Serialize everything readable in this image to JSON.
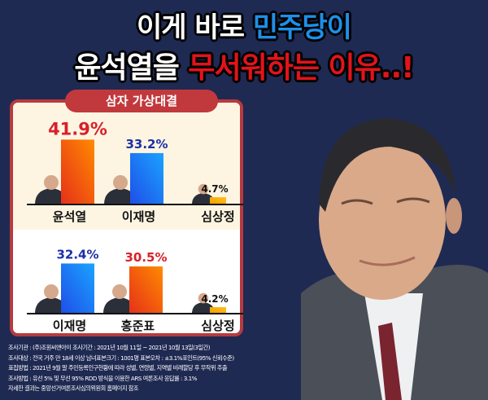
{
  "title": {
    "line1_a": "이게 바로 ",
    "line1_b": "민주당이",
    "line2_a": "윤석열을 ",
    "line2_b": "무서워하는 이유..!"
  },
  "badge": "삼자 가상대결",
  "colors": {
    "background": "#1f2a52",
    "blue_title": "#1e8fe8",
    "red_title": "#e3131b",
    "panel_border": "#b73a3f",
    "orange_bar": "#f0611c",
    "blue_bar": "#1f6ff0",
    "yellow_bar": "#f5a800"
  },
  "chart_data": [
    {
      "type": "bar",
      "categories": [
        "윤석열",
        "이재명",
        "심상정"
      ],
      "values": [
        41.9,
        33.2,
        4.7
      ],
      "labels": [
        "41.9%",
        "33.2%",
        "4.7%"
      ],
      "bar_colors": [
        "orange",
        "blue",
        "yellow"
      ],
      "label_colors": [
        "#d8202a",
        "#1b2fa8",
        "#111111"
      ]
    },
    {
      "type": "bar",
      "categories": [
        "이재명",
        "홍준표",
        "심상정"
      ],
      "values": [
        32.4,
        30.5,
        4.2
      ],
      "labels": [
        "32.4%",
        "30.5%",
        "4.2%"
      ],
      "bar_colors": [
        "blue",
        "orange",
        "yellow"
      ],
      "label_colors": [
        "#1b2fa8",
        "#d8202a",
        "#111111"
      ]
    }
  ],
  "footer": [
    "조사기관 : (주)조원씨앤아이 조사기간 : 2021년 10월 11일 ~ 2021년 10월 13일(3일간)",
    "조사대상 : 전국 거주 만 18세 이상 남녀표본크기 : 1001명 표본오차 : ±3.1%포인트(95% 신뢰수준)",
    "표집방법 : 2021년 9월 말 주민등록인구현황에 따라 성별, 연령별, 지역별 비례할당 후 무작위 추출",
    "조사방법 : 유선 5% 및 무선 95% RDD 방식을 이용한 ARS 여론조사 응답률 : 3.1%",
    "자세한 결과는 중앙선거여론조사심의위원회 홈페이지 참조"
  ]
}
